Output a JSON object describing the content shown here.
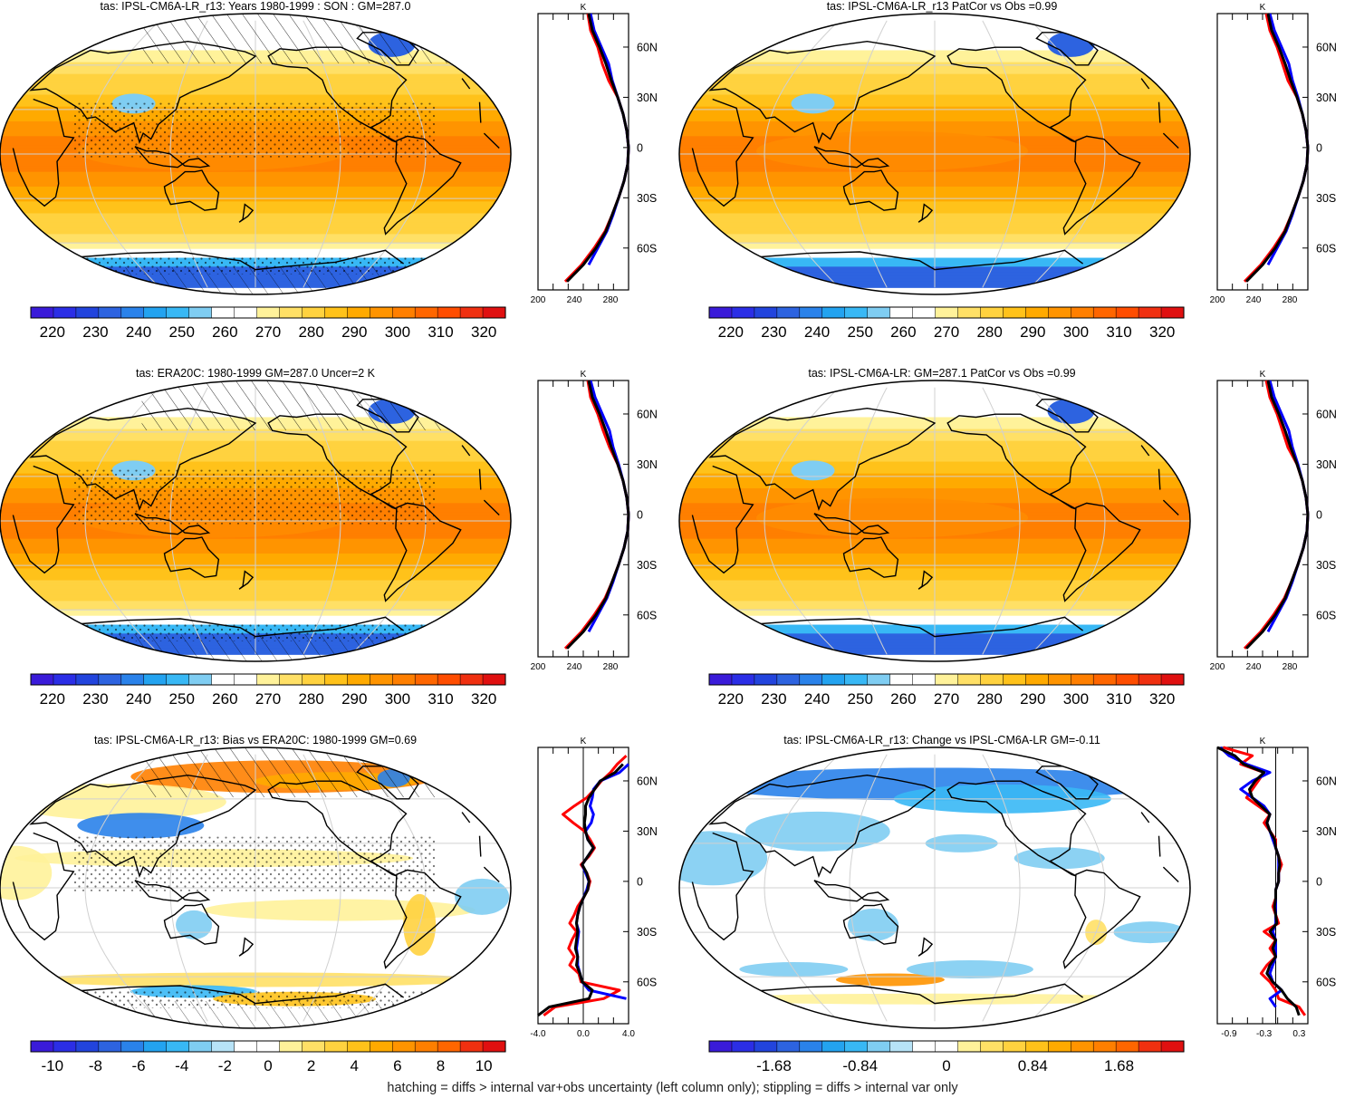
{
  "footer": "hatching = diffs > internal var+obs uncertainty (left column only); stippling = diffs > internal var only",
  "colors": {
    "land_line": "#000000",
    "grid_line": "#d0d0d0",
    "profile_model": "#ff0000",
    "profile_obs": "#0000ff",
    "profile_ens": "#000000"
  },
  "chart_data": [
    {
      "type": "heatmap",
      "title": "tas: IPSL-CM6A-LR_r13: Years 1980-1999 : SON : GM=287.0",
      "scale": "abs",
      "colorbar_labels": [
        "220",
        "230",
        "240",
        "250",
        "260",
        "270",
        "280",
        "290",
        "300",
        "310",
        "320"
      ],
      "colorbar_range": [
        215,
        325
      ],
      "projection": "robinson-pacific",
      "hatching": true,
      "stippling": true,
      "profile": {
        "unit": "K",
        "xticks": [
          "200",
          "240",
          "280"
        ],
        "xlim": [
          200,
          300
        ],
        "ylabels": [
          "60N",
          "30N",
          "0",
          "30S",
          "60S"
        ],
        "lat": [
          80,
          70,
          60,
          50,
          40,
          30,
          20,
          10,
          0,
          -10,
          -20,
          -30,
          -40,
          -50,
          -60,
          -70,
          -80
        ],
        "series": [
          {
            "color": "#ff0000",
            "values": [
              255,
              258,
              266,
              271,
              278,
              288,
              294,
              298,
              300,
              299,
              295,
              289,
              282,
              274,
              262,
              248,
              230
            ]
          },
          {
            "color": "#0000ff",
            "values": [
              258,
              262,
              270,
              278,
              282,
              288,
              294,
              298,
              300,
              299,
              295,
              289,
              283,
              276,
              266,
              256,
              null
            ]
          },
          {
            "color": "#000000",
            "values": [
              256,
              260,
              268,
              275,
              281,
              288,
              294,
              298,
              300,
              299,
              295,
              289,
              282,
              275,
              264,
              250,
              232
            ]
          }
        ]
      }
    },
    {
      "type": "heatmap",
      "title": "tas: IPSL-CM6A-LR_r13 PatCor vs Obs =0.99",
      "scale": "abs",
      "colorbar_labels": [
        "220",
        "230",
        "240",
        "250",
        "260",
        "270",
        "280",
        "290",
        "300",
        "310",
        "320"
      ],
      "colorbar_range": [
        215,
        325
      ],
      "projection": "robinson-pacific",
      "hatching": false,
      "stippling": false,
      "profile": {
        "unit": "K",
        "xticks": [
          "200",
          "240",
          "280"
        ],
        "xlim": [
          200,
          300
        ],
        "ylabels": [
          "60N",
          "30N",
          "0",
          "30S",
          "60S"
        ],
        "lat": [
          80,
          70,
          60,
          50,
          40,
          30,
          20,
          10,
          0,
          -10,
          -20,
          -30,
          -40,
          -50,
          -60,
          -70,
          -80
        ],
        "series": [
          {
            "color": "#ff0000",
            "values": [
              254,
              258,
              266,
              272,
              278,
              288,
              294,
              298,
              300,
              299,
              295,
              289,
              282,
              274,
              262,
              248,
              230
            ]
          },
          {
            "color": "#0000ff",
            "values": [
              258,
              263,
              271,
              279,
              283,
              289,
              294,
              298,
              300,
              299,
              295,
              289,
              283,
              276,
              266,
              256,
              null
            ]
          },
          {
            "color": "#000000",
            "values": [
              256,
              260,
              268,
              275,
              281,
              288,
              294,
              298,
              300,
              299,
              295,
              289,
              282,
              275,
              264,
              250,
              232
            ]
          }
        ]
      }
    },
    {
      "type": "heatmap",
      "title": "tas: ERA20C: 1980-1999 GM=287.0 Uncer=2 K",
      "scale": "abs",
      "colorbar_labels": [
        "220",
        "230",
        "240",
        "250",
        "260",
        "270",
        "280",
        "290",
        "300",
        "310",
        "320"
      ],
      "colorbar_range": [
        215,
        325
      ],
      "projection": "robinson-pacific",
      "hatching": true,
      "stippling": true,
      "profile": {
        "unit": "K",
        "xticks": [
          "200",
          "240",
          "280"
        ],
        "xlim": [
          200,
          300
        ],
        "ylabels": [
          "60N",
          "30N",
          "0",
          "30S",
          "60S"
        ],
        "lat": [
          80,
          70,
          60,
          50,
          40,
          30,
          20,
          10,
          0,
          -10,
          -20,
          -30,
          -40,
          -50,
          -60,
          -70,
          -80
        ],
        "series": [
          {
            "color": "#ff0000",
            "values": [
              255,
              258,
              266,
              272,
              279,
              288,
              294,
              298,
              300,
              299,
              295,
              289,
              282,
              274,
              262,
              248,
              230
            ]
          },
          {
            "color": "#0000ff",
            "values": [
              258,
              263,
              271,
              279,
              283,
              289,
              294,
              298,
              300,
              299,
              295,
              289,
              283,
              276,
              266,
              256,
              null
            ]
          },
          {
            "color": "#000000",
            "values": [
              256,
              260,
              268,
              275,
              281,
              288,
              294,
              298,
              300,
              299,
              295,
              289,
              282,
              275,
              264,
              250,
              232
            ]
          }
        ]
      }
    },
    {
      "type": "heatmap",
      "title": "tas: IPSL-CM6A-LR: GM=287.1 PatCor vs Obs =0.99",
      "scale": "abs",
      "colorbar_labels": [
        "220",
        "230",
        "240",
        "250",
        "260",
        "270",
        "280",
        "290",
        "300",
        "310",
        "320"
      ],
      "colorbar_range": [
        215,
        325
      ],
      "projection": "robinson-pacific",
      "hatching": false,
      "stippling": false,
      "profile": {
        "unit": "K",
        "xticks": [
          "200",
          "240",
          "280"
        ],
        "xlim": [
          200,
          300
        ],
        "ylabels": [
          "60N",
          "30N",
          "0",
          "30S",
          "60S"
        ],
        "lat": [
          80,
          70,
          60,
          50,
          40,
          30,
          20,
          10,
          0,
          -10,
          -20,
          -30,
          -40,
          -50,
          -60,
          -70,
          -80
        ],
        "series": [
          {
            "color": "#ff0000",
            "values": [
              254,
              258,
              266,
              272,
              278,
              288,
              294,
              298,
              300,
              299,
              295,
              289,
              282,
              274,
              262,
              248,
              230
            ]
          },
          {
            "color": "#0000ff",
            "values": [
              258,
              263,
              271,
              279,
              283,
              289,
              294,
              298,
              300,
              299,
              295,
              289,
              283,
              276,
              266,
              256,
              null
            ]
          },
          {
            "color": "#000000",
            "values": [
              256,
              260,
              268,
              275,
              281,
              288,
              294,
              298,
              300,
              299,
              295,
              289,
              282,
              275,
              264,
              250,
              232
            ]
          }
        ]
      }
    },
    {
      "type": "heatmap",
      "title": "tas: IPSL-CM6A-LR_r13: Bias vs ERA20C: 1980-1999  GM=0.69",
      "scale": "bias",
      "colorbar_labels": [
        "-10",
        "-8",
        "-6",
        "-4",
        "-2",
        "0",
        "2",
        "4",
        "6",
        "8",
        "10"
      ],
      "colorbar_range": [
        -11,
        11
      ],
      "projection": "robinson-pacific",
      "hatching": true,
      "stippling": true,
      "profile": {
        "unit": "K",
        "xticks": [
          "-4.0",
          "0.0",
          "4.0"
        ],
        "xlim": [
          -4,
          4
        ],
        "ylabels": [
          "60N",
          "30N",
          "0",
          "30S",
          "60S"
        ],
        "lat": [
          80,
          75,
          70,
          65,
          60,
          55,
          50,
          45,
          40,
          35,
          30,
          25,
          20,
          15,
          10,
          5,
          0,
          -5,
          -10,
          -15,
          -20,
          -25,
          -30,
          -35,
          -40,
          -45,
          -50,
          -55,
          -60,
          -65,
          -70,
          -75,
          -80
        ],
        "series": [
          {
            "color": "#ff0000",
            "values": [
              null,
              3.8,
              3.0,
              2.4,
              1.6,
              1.0,
              0.3,
              -0.8,
              -1.8,
              -0.9,
              0.1,
              0.6,
              1.0,
              0.5,
              -0.2,
              0.3,
              0.6,
              0.4,
              0.0,
              -0.5,
              -0.8,
              -1.2,
              -0.6,
              -1.0,
              -1.3,
              -0.8,
              -1.2,
              -0.4,
              -0.2,
              3.2,
              1.8,
              -2.5,
              -3.5
            ]
          },
          {
            "color": "#0000ff",
            "values": [
              null,
              null,
              4.0,
              3.2,
              1.5,
              0.9,
              0.8,
              0.6,
              0.9,
              0.7,
              0.2,
              0.4,
              0.9,
              0.4,
              -0.1,
              0.2,
              0.5,
              0.3,
              0.0,
              -0.3,
              -0.5,
              -0.6,
              -0.4,
              -0.5,
              -0.6,
              -0.5,
              -0.5,
              -0.3,
              -0.1,
              0.5,
              3.8,
              null,
              null
            ]
          },
          {
            "color": "#000000",
            "values": [
              null,
              null,
              3.5,
              2.8,
              1.5,
              1.0,
              0.5,
              0.2,
              0.2,
              0.1,
              0.2,
              0.4,
              0.9,
              0.4,
              -0.1,
              0.3,
              0.5,
              0.4,
              0.0,
              -0.3,
              -0.5,
              -0.6,
              -0.5,
              -0.6,
              -0.7,
              -0.5,
              -0.6,
              -0.3,
              -0.1,
              0.8,
              0.5,
              -3.0,
              -4.0
            ]
          }
        ]
      }
    },
    {
      "type": "heatmap",
      "title": "tas: IPSL-CM6A-LR_r13: Change vs IPSL-CM6A-LR GM=-0.11",
      "scale": "change",
      "colorbar_labels": [
        "-1.68",
        "-0.84",
        "0",
        "0.84",
        "1.68"
      ],
      "colorbar_range": [
        -2.31,
        2.31
      ],
      "projection": "robinson-pacific",
      "hatching": false,
      "stippling": false,
      "profile": {
        "unit": "K",
        "xticks": [
          "-0.9",
          "-0.3",
          "0.3"
        ],
        "xlim": [
          -1.1,
          0.45
        ],
        "ylabels": [
          "60N",
          "30N",
          "0",
          "30S",
          "60S"
        ],
        "lat": [
          80,
          75,
          70,
          65,
          60,
          55,
          50,
          45,
          40,
          35,
          30,
          25,
          20,
          15,
          10,
          5,
          0,
          -5,
          -10,
          -15,
          -20,
          -25,
          -30,
          -35,
          -40,
          -45,
          -50,
          -55,
          -60,
          -65,
          -70,
          -75,
          -80
        ],
        "series": [
          {
            "color": "#ff0000",
            "values": [
              -1.0,
              -0.5,
              -0.7,
              -0.3,
              -0.4,
              -0.5,
              -0.6,
              -0.4,
              -0.2,
              -0.3,
              -0.2,
              -0.1,
              -0.1,
              -0.05,
              0.0,
              -0.05,
              -0.05,
              -0.1,
              -0.1,
              -0.15,
              -0.1,
              -0.05,
              -0.3,
              -0.1,
              -0.2,
              -0.1,
              -0.25,
              -0.35,
              -0.2,
              -0.1,
              -0.05,
              0.3,
              0.4
            ]
          },
          {
            "color": "#0000ff",
            "values": [
              -1.05,
              -0.9,
              -0.6,
              -0.2,
              -0.5,
              -0.7,
              -0.5,
              -0.3,
              -0.2,
              -0.25,
              -0.2,
              -0.15,
              -0.1,
              -0.05,
              -0.05,
              -0.05,
              -0.05,
              -0.1,
              -0.1,
              -0.1,
              -0.1,
              -0.1,
              -0.15,
              -0.1,
              -0.1,
              -0.1,
              -0.15,
              -0.2,
              -0.15,
              0.0,
              -0.2,
              -0.1,
              null
            ]
          },
          {
            "color": "#000000",
            "values": [
              -1.1,
              -0.8,
              -0.65,
              -0.3,
              -0.45,
              -0.55,
              -0.5,
              -0.35,
              -0.2,
              -0.25,
              -0.2,
              -0.12,
              -0.1,
              -0.05,
              -0.03,
              -0.05,
              -0.05,
              -0.1,
              -0.1,
              -0.12,
              -0.1,
              -0.08,
              -0.2,
              -0.1,
              -0.15,
              -0.1,
              -0.2,
              -0.25,
              -0.15,
              0.0,
              0.1,
              0.25,
              0.3
            ]
          }
        ]
      }
    }
  ]
}
